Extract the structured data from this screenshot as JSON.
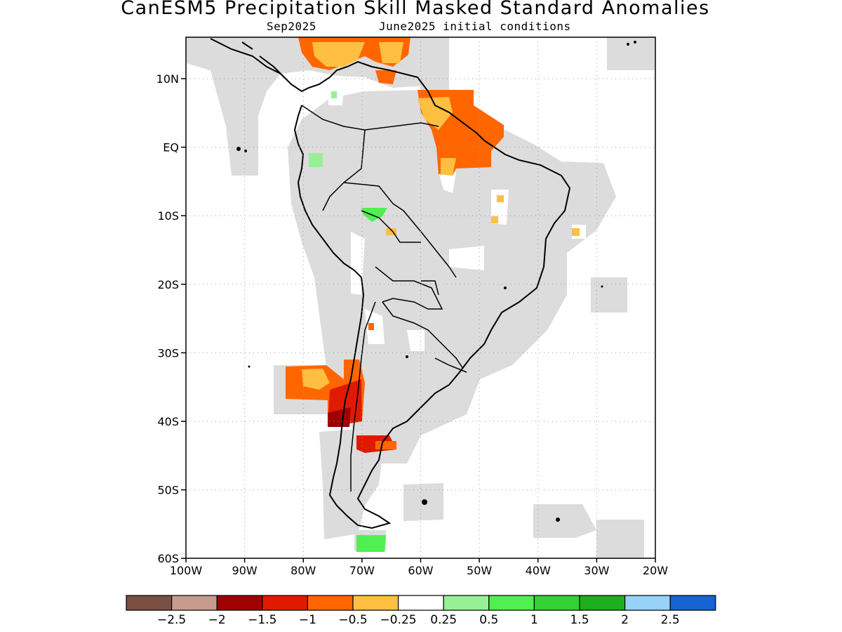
{
  "title": "CanESM5 Precipitation Skill Masked Standard Anomalies",
  "subtitle_left": "Sep2025",
  "subtitle_right": "June2025 initial conditions",
  "map": {
    "lon_range": [
      -100,
      -20
    ],
    "lat_range": [
      -60,
      16
    ],
    "lat_ticks": [
      "10N",
      "EQ",
      "10S",
      "20S",
      "30S",
      "40S",
      "50S",
      "60S"
    ],
    "lon_ticks": [
      "100W",
      "90W",
      "80W",
      "70W",
      "60W",
      "50W",
      "40W",
      "30W",
      "20W"
    ],
    "grid": "dotted",
    "mask_color": "#dcdcdc"
  },
  "colorbar": {
    "colors": [
      "#7a5044",
      "#c89b90",
      "#a00000",
      "#e01a00",
      "#ff6600",
      "#ffbf40",
      "#ffffff",
      "#96f096",
      "#50f050",
      "#32d232",
      "#1eaf1e",
      "#96d2fa",
      "#1464d2"
    ],
    "labels": [
      "−2.5",
      "−2",
      "−1.5",
      "−1",
      "−0.5",
      "−0.25",
      "0.25",
      "0.5",
      "1",
      "1.5",
      "2",
      "2.5"
    ]
  }
}
